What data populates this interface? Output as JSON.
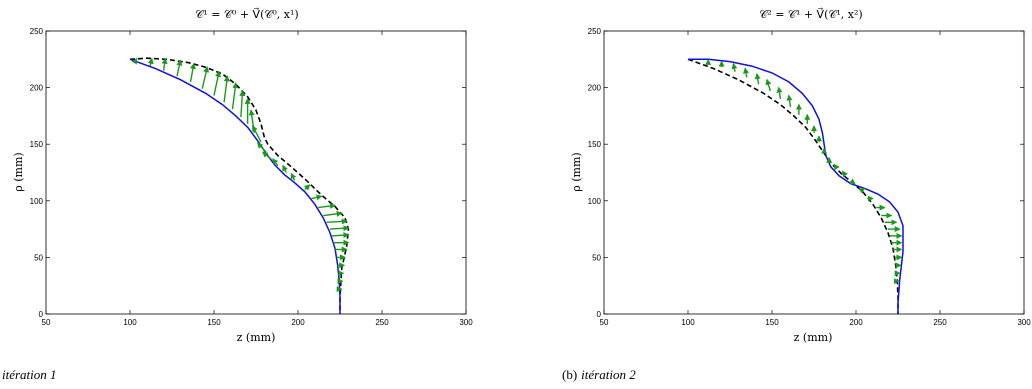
{
  "chart_data": [
    {
      "type": "line",
      "title": "𝒞¹ = 𝒞⁰ + V⃗(𝒞⁰, x¹)",
      "xlabel": "z (mm)",
      "ylabel": "ρ (mm)",
      "xlim": [
        50,
        300
      ],
      "ylim": [
        0,
        250
      ],
      "xticks": [
        50,
        100,
        150,
        200,
        250,
        300
      ],
      "yticks": [
        0,
        50,
        100,
        150,
        200,
        250
      ],
      "caption_prefix": "",
      "caption_text": "itération 1",
      "series": [
        {
          "style": "dashed",
          "color": "#000000",
          "x": [
            100,
            110,
            122,
            135,
            145,
            155,
            163,
            170,
            175,
            178,
            180,
            182,
            188,
            196,
            205,
            214,
            222,
            228,
            230,
            229,
            226,
            225,
            225
          ],
          "y": [
            225,
            226,
            225,
            222,
            218,
            212,
            203,
            192,
            180,
            168,
            156,
            150,
            140,
            130,
            118,
            105,
            95,
            85,
            75,
            60,
            40,
            15,
            0
          ]
        },
        {
          "style": "solid",
          "color": "#1010e0",
          "x": [
            100,
            115,
            130,
            145,
            155,
            163,
            170,
            176,
            181,
            186,
            192,
            198,
            204,
            210,
            215,
            219,
            222,
            223.5,
            224.5,
            225,
            225
          ],
          "y": [
            225,
            217,
            207,
            195,
            185,
            175,
            165,
            153,
            142,
            132,
            123,
            116,
            108,
            97,
            85,
            72,
            58,
            44,
            30,
            15,
            0
          ]
        }
      ],
      "arrow_color": "#1a9a1a",
      "arrows": [
        {
          "from": [
            103,
            223
          ],
          "to": [
            104,
            225.5
          ]
        },
        {
          "from": [
            112,
            219
          ],
          "to": [
            113,
            225.5
          ]
        },
        {
          "from": [
            120,
            215
          ],
          "to": [
            121,
            225.5
          ]
        },
        {
          "from": [
            128,
            210
          ],
          "to": [
            130,
            224
          ]
        },
        {
          "from": [
            136,
            205
          ],
          "to": [
            138,
            221
          ]
        },
        {
          "from": [
            143,
            199
          ],
          "to": [
            146,
            218
          ]
        },
        {
          "from": [
            150,
            193
          ],
          "to": [
            153,
            214
          ]
        },
        {
          "from": [
            156,
            187
          ],
          "to": [
            158,
            210
          ]
        },
        {
          "from": [
            161,
            181
          ],
          "to": [
            163,
            204
          ]
        },
        {
          "from": [
            166,
            174
          ],
          "to": [
            167,
            197
          ]
        },
        {
          "from": [
            170,
            168
          ],
          "to": [
            170,
            190
          ]
        },
        {
          "from": [
            174,
            160
          ],
          "to": [
            172,
            180
          ]
        },
        {
          "from": [
            178,
            152
          ],
          "to": [
            173,
            166
          ]
        },
        {
          "from": [
            181,
            143
          ],
          "to": [
            176,
            151
          ]
        },
        {
          "from": [
            184,
            137
          ],
          "to": [
            179,
            143
          ]
        },
        {
          "from": [
            188,
            131
          ],
          "to": [
            185,
            137
          ]
        },
        {
          "from": [
            193,
            125
          ],
          "to": [
            191,
            131
          ]
        },
        {
          "from": [
            198,
            118
          ],
          "to": [
            196,
            124
          ]
        },
        {
          "from": [
            204,
            110
          ],
          "to": [
            207,
            114
          ]
        },
        {
          "from": [
            208,
            102
          ],
          "to": [
            214,
            104
          ]
        },
        {
          "from": [
            212,
            94
          ],
          "to": [
            222,
            96
          ]
        },
        {
          "from": [
            215,
            87
          ],
          "to": [
            226,
            89
          ]
        },
        {
          "from": [
            217,
            81
          ],
          "to": [
            229,
            82
          ]
        },
        {
          "from": [
            219,
            75
          ],
          "to": [
            230,
            76
          ]
        },
        {
          "from": [
            220,
            69
          ],
          "to": [
            230,
            70
          ]
        },
        {
          "from": [
            221,
            63
          ],
          "to": [
            230,
            63
          ]
        },
        {
          "from": [
            222,
            57
          ],
          "to": [
            229,
            57
          ]
        },
        {
          "from": [
            223,
            50
          ],
          "to": [
            228,
            50
          ]
        },
        {
          "from": [
            223.5,
            43
          ],
          "to": [
            227.5,
            43
          ]
        },
        {
          "from": [
            224,
            36
          ],
          "to": [
            227,
            36
          ]
        },
        {
          "from": [
            224.5,
            29
          ],
          "to": [
            226.5,
            29
          ]
        },
        {
          "from": [
            225,
            22
          ],
          "to": [
            226,
            22
          ]
        }
      ]
    },
    {
      "type": "line",
      "title": "𝒞² = 𝒞¹ + V⃗(𝒞¹, x²)",
      "xlabel": "z (mm)",
      "ylabel": "ρ (mm)",
      "xlim": [
        50,
        300
      ],
      "ylim": [
        0,
        250
      ],
      "xticks": [
        50,
        100,
        150,
        200,
        250,
        300
      ],
      "yticks": [
        0,
        50,
        100,
        150,
        200,
        250
      ],
      "caption_prefix": "(b)",
      "caption_text": "itération 2",
      "series": [
        {
          "style": "dashed",
          "color": "#000000",
          "x": [
            100,
            115,
            130,
            145,
            155,
            163,
            170,
            176,
            181,
            186,
            192,
            198,
            204,
            210,
            215,
            219,
            222,
            223.5,
            224.5,
            225,
            225
          ],
          "y": [
            225,
            217,
            207,
            195,
            185,
            175,
            165,
            153,
            142,
            132,
            123,
            116,
            108,
            97,
            85,
            72,
            58,
            44,
            30,
            15,
            0
          ]
        },
        {
          "style": "solid",
          "color": "#1010e0",
          "x": [
            100,
            112,
            125,
            138,
            150,
            160,
            168,
            174,
            178,
            180,
            181,
            182,
            185,
            190,
            197,
            205,
            213,
            220,
            225,
            228,
            228,
            226,
            225,
            225
          ],
          "y": [
            225,
            225,
            223,
            219,
            213,
            205,
            195,
            184,
            172,
            160,
            150,
            140,
            130,
            122,
            115,
            111,
            106,
            99,
            90,
            78,
            55,
            30,
            10,
            0
          ]
        }
      ],
      "arrow_color": "#1a9a1a",
      "arrows": [
        {
          "from": [
            112,
            222
          ],
          "to": [
            112,
            224.5
          ]
        },
        {
          "from": [
            120,
            218
          ],
          "to": [
            120,
            223
          ]
        },
        {
          "from": [
            128,
            214
          ],
          "to": [
            127,
            221
          ]
        },
        {
          "from": [
            135,
            209
          ],
          "to": [
            134,
            217
          ]
        },
        {
          "from": [
            142,
            203
          ],
          "to": [
            141,
            212
          ]
        },
        {
          "from": [
            149,
            197
          ],
          "to": [
            147,
            207
          ]
        },
        {
          "from": [
            155,
            190
          ],
          "to": [
            154,
            200
          ]
        },
        {
          "from": [
            161,
            183
          ],
          "to": [
            160,
            193
          ]
        },
        {
          "from": [
            166,
            176
          ],
          "to": [
            166,
            185
          ]
        },
        {
          "from": [
            171,
            168
          ],
          "to": [
            171,
            176
          ]
        },
        {
          "from": [
            175,
            160
          ],
          "to": [
            175,
            166
          ]
        },
        {
          "from": [
            178,
            152
          ],
          "to": [
            178,
            157
          ]
        },
        {
          "from": [
            181,
            143
          ],
          "to": [
            181,
            146
          ]
        },
        {
          "from": [
            184,
            136
          ],
          "to": [
            184,
            138
          ]
        },
        {
          "from": [
            188,
            130
          ],
          "to": [
            187,
            132
          ]
        },
        {
          "from": [
            193,
            124
          ],
          "to": [
            192,
            126
          ]
        },
        {
          "from": [
            198,
            118
          ],
          "to": [
            198,
            119
          ]
        },
        {
          "from": [
            204,
            110
          ],
          "to": [
            205,
            111
          ]
        },
        {
          "from": [
            208,
            102
          ],
          "to": [
            210,
            102
          ]
        },
        {
          "from": [
            212,
            94
          ],
          "to": [
            217,
            94
          ]
        },
        {
          "from": [
            215,
            87
          ],
          "to": [
            221,
            87
          ]
        },
        {
          "from": [
            217,
            81
          ],
          "to": [
            224,
            81
          ]
        },
        {
          "from": [
            219,
            75
          ],
          "to": [
            226,
            75
          ]
        },
        {
          "from": [
            220,
            69
          ],
          "to": [
            227,
            69
          ]
        },
        {
          "from": [
            221,
            63
          ],
          "to": [
            227,
            63
          ]
        },
        {
          "from": [
            222,
            57
          ],
          "to": [
            227,
            57
          ]
        },
        {
          "from": [
            223,
            50
          ],
          "to": [
            227,
            50
          ]
        },
        {
          "from": [
            223.5,
            43
          ],
          "to": [
            226.5,
            43
          ]
        },
        {
          "from": [
            224,
            36
          ],
          "to": [
            226,
            36
          ]
        },
        {
          "from": [
            224.5,
            29
          ],
          "to": [
            225.5,
            29
          ]
        }
      ]
    }
  ]
}
